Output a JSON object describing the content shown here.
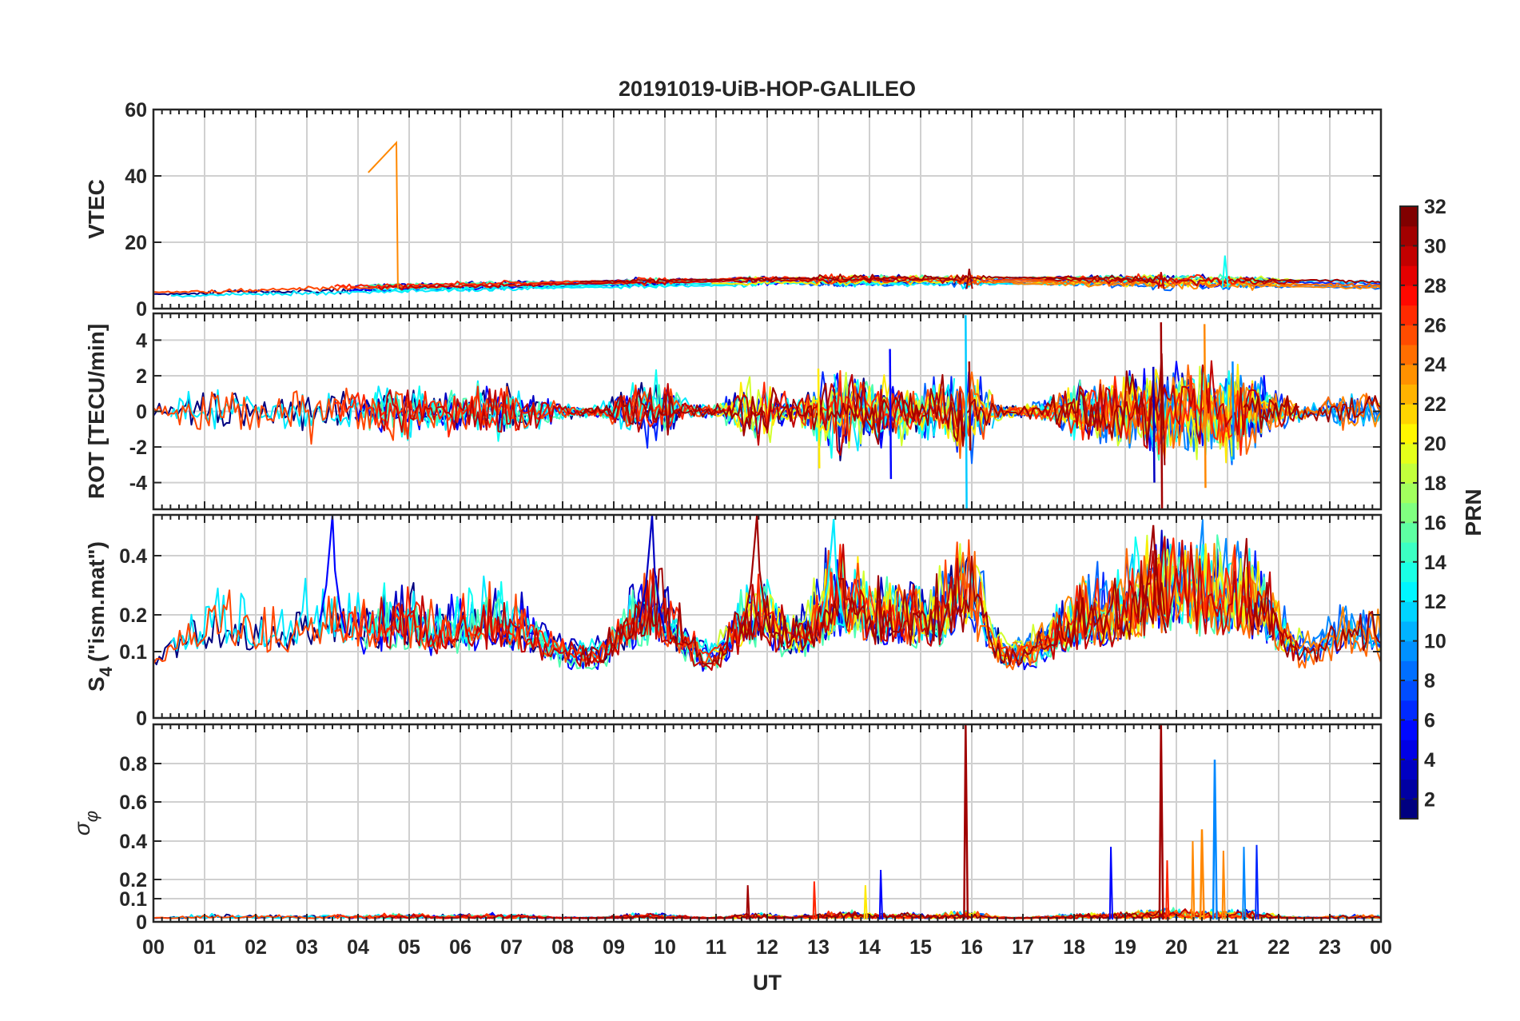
{
  "chart_data": {
    "title": "20191019-UiB-HOP-GALILEO",
    "type": "line",
    "x_axis": {
      "label": "UT",
      "range": [
        0,
        24
      ],
      "tick_labels": [
        "00",
        "01",
        "02",
        "03",
        "04",
        "05",
        "06",
        "07",
        "08",
        "09",
        "10",
        "11",
        "12",
        "13",
        "14",
        "15",
        "16",
        "17",
        "18",
        "19",
        "20",
        "21",
        "22",
        "23",
        "00"
      ]
    },
    "panels": [
      {
        "id": "vtec",
        "ylabel": "VTEC",
        "ylim": [
          0,
          60
        ],
        "yticks": [
          0,
          20,
          40,
          60
        ],
        "ytick_labels": [
          "0",
          "20",
          "40",
          "60"
        ],
        "grid": true
      },
      {
        "id": "rot",
        "ylabel": "ROT [TECU/min]",
        "ylim": [
          -5.5,
          5.5
        ],
        "yticks": [
          -4,
          -2,
          0,
          2,
          4
        ],
        "ytick_labels": [
          "-4",
          "-2",
          "0",
          "2",
          "4"
        ],
        "grid": true
      },
      {
        "id": "s4",
        "ylabel": "S",
        "ylabel_sub": "4",
        "ylabel_suffix": "(\"ism.mat\")",
        "ylim": [
          0,
          0.6
        ],
        "ytick_labels": [
          "0",
          "0.1",
          "0.2",
          "0.4"
        ],
        "scale": "nonlinear",
        "grid": true
      },
      {
        "id": "sigma_phi",
        "ylabel": "σ",
        "ylabel_sub": "φ",
        "ylim": [
          0,
          1.0
        ],
        "ytick_labels": [
          "0",
          "0.1",
          "0.2",
          "0.4",
          "0.6",
          "0.8"
        ],
        "scale": "nonlinear",
        "grid": true
      }
    ],
    "colorbar": {
      "label": "PRN",
      "range": [
        1,
        32
      ],
      "colormap": "jet",
      "tick_labels": [
        "2",
        "4",
        "6",
        "8",
        "10",
        "12",
        "14",
        "16",
        "18",
        "20",
        "22",
        "24",
        "26",
        "28",
        "30",
        "32"
      ]
    },
    "series_prns": [
      1,
      3,
      5,
      6,
      8,
      9,
      11,
      12,
      13,
      15,
      19,
      21,
      24,
      25,
      26,
      27,
      30,
      31
    ],
    "features": {
      "vtec_baseline": 5,
      "vtec_spike": {
        "prn": 24,
        "x": [
          4.2,
          4.75,
          4.78
        ],
        "y": [
          41,
          50,
          6
        ]
      },
      "vtec_peak_values": [
        12,
        11,
        16
      ],
      "rot_peak_times": [
        15.9,
        19.7,
        20.5
      ],
      "s4_peaks": [
        {
          "x": 3.5,
          "y": 0.6,
          "prn": 5
        },
        {
          "x": 9.75,
          "y": 0.6,
          "prn": 3
        },
        {
          "x": 11.8,
          "y": 0.6,
          "prn": 31
        },
        {
          "x": 13.3,
          "y": 0.58,
          "prn": 12
        },
        {
          "x": 19.55,
          "y": 0.55,
          "prn": 31
        }
      ],
      "sigma_peaks": [
        {
          "x": 15.88,
          "y": 1.0,
          "prn": 31
        },
        {
          "x": 19.7,
          "y": 1.0,
          "prn": 31
        },
        {
          "x": 20.75,
          "y": 0.82,
          "prn": 9
        },
        {
          "x": 20.5,
          "y": 0.46,
          "prn": 24
        }
      ]
    }
  }
}
